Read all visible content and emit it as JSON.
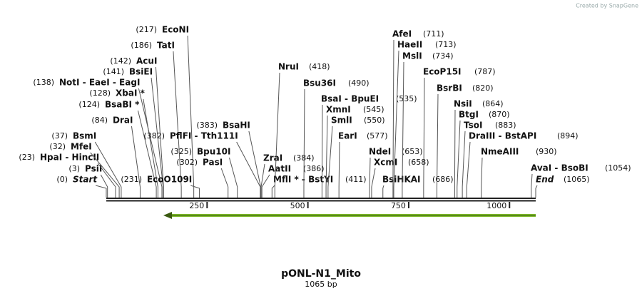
{
  "credit": "Created by SnapGene",
  "title": "pONL-N1_Mito",
  "subtitle": "1065 bp",
  "ruler": {
    "ticks": [
      250,
      500,
      750,
      1000
    ]
  },
  "sites": [
    {
      "name": "Start",
      "position": {
        "value": 0,
        "label": "(0)"
      }
    },
    {
      "name": "PsiI",
      "position": {
        "value": 3,
        "label": "(3)"
      }
    },
    {
      "name": "HpaI  -  HincII",
      "position": {
        "value": 23,
        "label": "(23)"
      }
    },
    {
      "name": "MfeI",
      "position": {
        "value": 32,
        "label": "(32)"
      }
    },
    {
      "name": "BsmI",
      "position": {
        "value": 37,
        "label": "(37)"
      }
    },
    {
      "name": "DraI",
      "position": {
        "value": 84,
        "label": "(84)"
      }
    },
    {
      "name": "BsaBI *",
      "position": {
        "value": 124,
        "label": "(124)"
      }
    },
    {
      "name": "XbaI *",
      "position": {
        "value": 128,
        "label": "(128)"
      }
    },
    {
      "name": "NotI  -  EaeI  -  EagI",
      "position": {
        "value": 138,
        "label": "(138)"
      }
    },
    {
      "name": "BsiEI",
      "position": {
        "value": 141,
        "label": "(141)"
      }
    },
    {
      "name": "AcuI",
      "position": {
        "value": 142,
        "label": "(142)"
      }
    },
    {
      "name": "TatI",
      "position": {
        "value": 186,
        "label": "(186)"
      }
    },
    {
      "name": "EcoNI",
      "position": {
        "value": 217,
        "label": "(217)"
      }
    },
    {
      "name": "EcoO109I",
      "position": {
        "value": 231,
        "label": "(231)"
      }
    },
    {
      "name": "PasI",
      "position": {
        "value": 302,
        "label": "(302)"
      }
    },
    {
      "name": "Bpu10I",
      "position": {
        "value": 325,
        "label": "(325)"
      }
    },
    {
      "name": "PflFI  -  Tth111I",
      "position": {
        "value": 382,
        "label": "(382)"
      }
    },
    {
      "name": "BsaHI",
      "position": {
        "value": 383,
        "label": "(383)"
      }
    },
    {
      "name": "ZraI",
      "position": {
        "value": 384,
        "label": "(384)"
      }
    },
    {
      "name": "AatII",
      "position": {
        "value": 386,
        "label": "(386)"
      }
    },
    {
      "name": "MflI *  -  BstYI",
      "position": {
        "value": 411,
        "label": "(411)"
      }
    },
    {
      "name": "NruI",
      "position": {
        "value": 418,
        "label": "(418)"
      }
    },
    {
      "name": "Bsu36I",
      "position": {
        "value": 490,
        "label": "(490)"
      }
    },
    {
      "name": "BsaI  -  BpuEI",
      "position": {
        "value": 535,
        "label": "(535)"
      }
    },
    {
      "name": "XmnI",
      "position": {
        "value": 545,
        "label": "(545)"
      }
    },
    {
      "name": "SmlI",
      "position": {
        "value": 550,
        "label": "(550)"
      }
    },
    {
      "name": "EarI",
      "position": {
        "value": 577,
        "label": "(577)"
      }
    },
    {
      "name": "NdeI",
      "position": {
        "value": 653,
        "label": "(653)"
      }
    },
    {
      "name": "XcmI",
      "position": {
        "value": 658,
        "label": "(658)"
      }
    },
    {
      "name": "BsiHKAI",
      "position": {
        "value": 686,
        "label": "(686)"
      }
    },
    {
      "name": "AfeI",
      "position": {
        "value": 711,
        "label": "(711)"
      }
    },
    {
      "name": "HaeII",
      "position": {
        "value": 713,
        "label": "(713)"
      }
    },
    {
      "name": "MslI",
      "position": {
        "value": 734,
        "label": "(734)"
      }
    },
    {
      "name": "EcoP15I",
      "position": {
        "value": 787,
        "label": "(787)"
      }
    },
    {
      "name": "BsrBI",
      "position": {
        "value": 820,
        "label": "(820)"
      }
    },
    {
      "name": "NsiI",
      "position": {
        "value": 864,
        "label": "(864)"
      }
    },
    {
      "name": "BtgI",
      "position": {
        "value": 870,
        "label": "(870)"
      }
    },
    {
      "name": "TsoI",
      "position": {
        "value": 883,
        "label": "(883)"
      }
    },
    {
      "name": "DraIII  -  BstAPI",
      "position": {
        "value": 894,
        "label": "(894)"
      }
    },
    {
      "name": "NmeAIII",
      "position": {
        "value": 930,
        "label": "(930)"
      }
    },
    {
      "name": "AvaI  -  BsoBI",
      "position": {
        "value": 1054,
        "label": "(1054)"
      }
    },
    {
      "name": "End",
      "position": {
        "value": 1065,
        "label": "(1065)"
      }
    }
  ]
}
